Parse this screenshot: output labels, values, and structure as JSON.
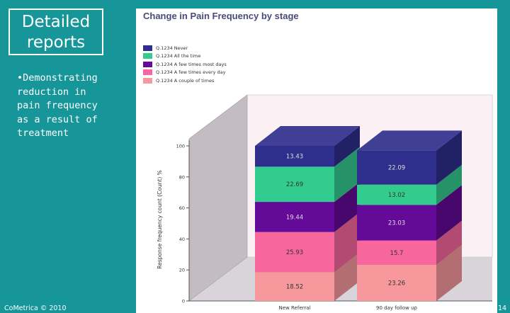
{
  "slide": {
    "title": "Detailed reports",
    "bullet": "•Demonstrating reduction in pain frequency as a result of treatment",
    "footer": "CoMetrica © 2010",
    "page_number": "14"
  },
  "chart_data": {
    "type": "bar",
    "stacked": true,
    "three_d": true,
    "title": "Change in Pain Frequency by stage",
    "ylabel": "Response frequency count (Count) %",
    "xlabel": "",
    "ylim": [
      0,
      100
    ],
    "yticks": [
      "0",
      "20",
      "40",
      "60",
      "80",
      "100"
    ],
    "categories": [
      "New Referral",
      "90 day follow up"
    ],
    "series": [
      {
        "name": "Q.1234 A couple of times",
        "color": "#f7999c",
        "values": [
          18.52,
          23.26
        ],
        "labels": [
          "18.52",
          "23.26"
        ]
      },
      {
        "name": "Q.1234 A few times every day",
        "color": "#f7679d",
        "values": [
          25.93,
          15.7
        ],
        "labels": [
          "25.93",
          "15.7"
        ]
      },
      {
        "name": "Q.1234 A few times most days",
        "color": "#640a98",
        "values": [
          19.44,
          23.03
        ],
        "labels": [
          "19.44",
          "23.03"
        ]
      },
      {
        "name": "Q.1234 All the time",
        "color": "#33cc8f",
        "values": [
          22.69,
          13.02
        ],
        "labels": [
          "22.69",
          "13.02"
        ]
      },
      {
        "name": "Q.1234 Never",
        "color": "#2e2f8c",
        "values": [
          13.43,
          22.09
        ],
        "labels": [
          "13.43",
          "22.09"
        ]
      }
    ],
    "legend_order": [
      4,
      3,
      2,
      1,
      0
    ]
  }
}
